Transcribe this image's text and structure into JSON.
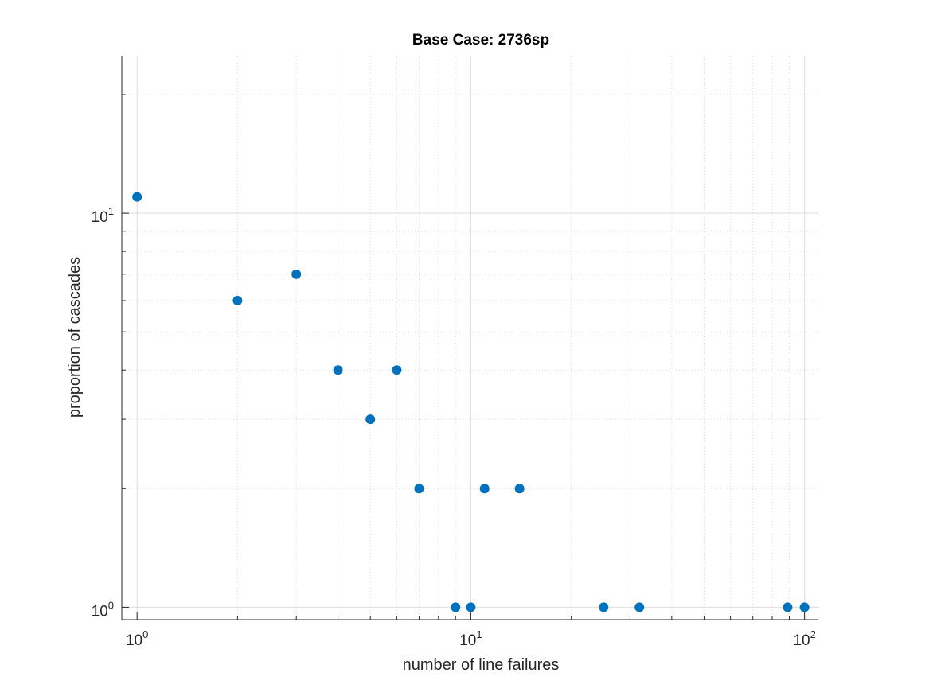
{
  "chart_data": {
    "type": "scatter",
    "title": "Base Case: 2736sp",
    "xlabel": "number of line failures",
    "ylabel": "proportion of cascades",
    "xscale": "log",
    "yscale": "log",
    "xlim": [
      0.9,
      110
    ],
    "ylim": [
      0.93,
      25
    ],
    "grid": true,
    "minor_grid": true,
    "x_ticks": [
      {
        "value": 1,
        "base": "10",
        "exp": "0"
      },
      {
        "value": 10,
        "base": "10",
        "exp": "1"
      },
      {
        "value": 100,
        "base": "10",
        "exp": "2"
      }
    ],
    "y_ticks": [
      {
        "value": 1,
        "base": "10",
        "exp": "0"
      },
      {
        "value": 10,
        "base": "10",
        "exp": "1"
      }
    ],
    "marker_color": "#0072BD",
    "series": [
      {
        "points": [
          {
            "x": 1,
            "y": 11
          },
          {
            "x": 2,
            "y": 6
          },
          {
            "x": 3,
            "y": 7
          },
          {
            "x": 4,
            "y": 4
          },
          {
            "x": 5,
            "y": 3
          },
          {
            "x": 6,
            "y": 4
          },
          {
            "x": 7,
            "y": 2
          },
          {
            "x": 9,
            "y": 1
          },
          {
            "x": 10,
            "y": 1
          },
          {
            "x": 11,
            "y": 2
          },
          {
            "x": 14,
            "y": 2
          },
          {
            "x": 25,
            "y": 1
          },
          {
            "x": 32,
            "y": 1
          },
          {
            "x": 89,
            "y": 1
          },
          {
            "x": 100,
            "y": 1
          }
        ]
      }
    ]
  }
}
